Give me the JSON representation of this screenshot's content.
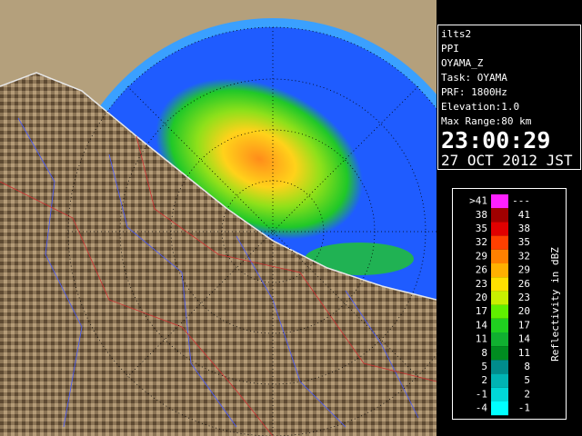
{
  "info": {
    "lines": [
      "ilts2",
      "PPI",
      "OYAMA_Z",
      "Task: OYAMA",
      "PRF: 1800Hz",
      "Elevation:1.0",
      "Max Range:80 km"
    ],
    "time": "23:00:29",
    "date": "27 OCT 2012 JST"
  },
  "legend": {
    "title": "Reflectivity in dBZ",
    "rows": [
      {
        "low": ">41",
        "high": "---",
        "color": "#ff20ff"
      },
      {
        "low": "38",
        "high": "41",
        "color": "#a00000"
      },
      {
        "low": "35",
        "high": "38",
        "color": "#e00000"
      },
      {
        "low": "32",
        "high": "35",
        "color": "#ff4000"
      },
      {
        "low": "29",
        "high": "32",
        "color": "#ff8000"
      },
      {
        "low": "26",
        "high": "29",
        "color": "#ffb000"
      },
      {
        "low": "23",
        "high": "26",
        "color": "#ffe000"
      },
      {
        "low": "20",
        "high": "23",
        "color": "#c8f000"
      },
      {
        "low": "17",
        "high": "20",
        "color": "#60f000"
      },
      {
        "low": "14",
        "high": "17",
        "color": "#20d020"
      },
      {
        "low": "11",
        "high": "14",
        "color": "#10b030"
      },
      {
        "low": "8",
        "high": "11",
        "color": "#008c20"
      },
      {
        "low": "5",
        "high": "8",
        "color": "#008c8c"
      },
      {
        "low": "2",
        "high": "5",
        "color": "#00b4b4"
      },
      {
        "low": "-1",
        "high": "2",
        "color": "#00d8d8"
      },
      {
        "low": "-4",
        "high": "-1",
        "color": "#00ffff"
      }
    ]
  }
}
